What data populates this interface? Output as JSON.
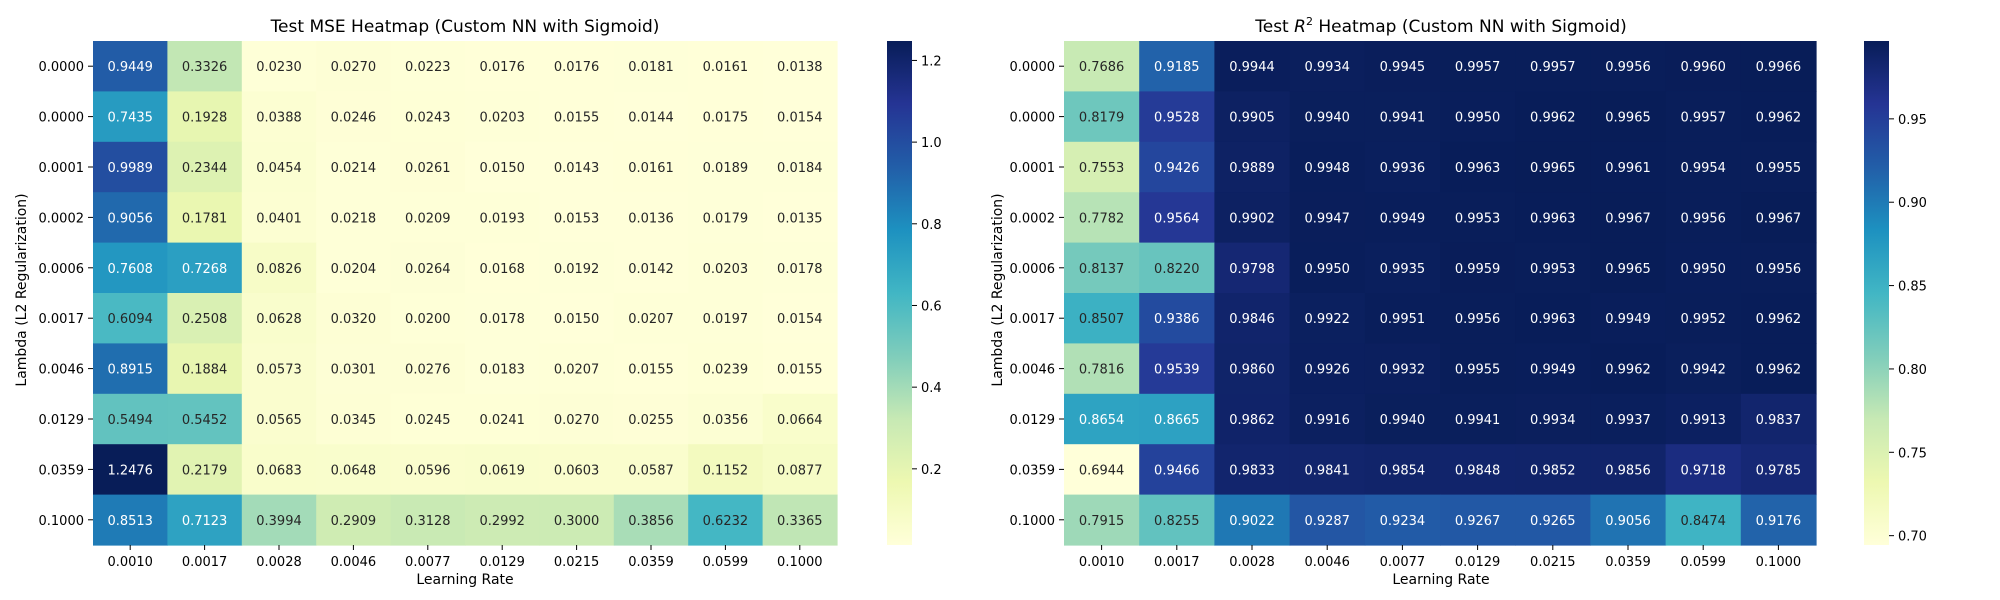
{
  "chart_data": [
    {
      "type": "heatmap",
      "title": "Test MSE Heatmap (Custom NN with Sigmoid)",
      "xlabel": "Learning Rate",
      "ylabel": "Lambda (L2 Regularization)",
      "x_categories": [
        "0.0010",
        "0.0017",
        "0.0028",
        "0.0046",
        "0.0077",
        "0.0129",
        "0.0215",
        "0.0359",
        "0.0599",
        "0.1000"
      ],
      "y_categories": [
        "0.0000",
        "0.0000",
        "0.0001",
        "0.0002",
        "0.0006",
        "0.0017",
        "0.0046",
        "0.0129",
        "0.0359",
        "0.1000"
      ],
      "values": [
        [
          0.9449,
          0.3326,
          0.023,
          0.027,
          0.0223,
          0.0176,
          0.0176,
          0.0181,
          0.0161,
          0.0138
        ],
        [
          0.7435,
          0.1928,
          0.0388,
          0.0246,
          0.0243,
          0.0203,
          0.0155,
          0.0144,
          0.0175,
          0.0154
        ],
        [
          0.9989,
          0.2344,
          0.0454,
          0.0214,
          0.0261,
          0.015,
          0.0143,
          0.0161,
          0.0189,
          0.0184
        ],
        [
          0.9056,
          0.1781,
          0.0401,
          0.0218,
          0.0209,
          0.0193,
          0.0153,
          0.0136,
          0.0179,
          0.0135
        ],
        [
          0.7608,
          0.7268,
          0.0826,
          0.0204,
          0.0264,
          0.0168,
          0.0192,
          0.0142,
          0.0203,
          0.0178
        ],
        [
          0.6094,
          0.2508,
          0.0628,
          0.032,
          0.02,
          0.0178,
          0.015,
          0.0207,
          0.0197,
          0.0154
        ],
        [
          0.8915,
          0.1884,
          0.0573,
          0.0301,
          0.0276,
          0.0183,
          0.0207,
          0.0155,
          0.0239,
          0.0155
        ],
        [
          0.5494,
          0.5452,
          0.0565,
          0.0345,
          0.0245,
          0.0241,
          0.027,
          0.0255,
          0.0356,
          0.0664
        ],
        [
          1.2476,
          0.2179,
          0.0683,
          0.0648,
          0.0596,
          0.0619,
          0.0603,
          0.0587,
          0.1152,
          0.0877
        ],
        [
          0.8513,
          0.7123,
          0.3994,
          0.2909,
          0.3128,
          0.2992,
          0.3,
          0.3856,
          0.6232,
          0.3365
        ]
      ],
      "colormap": "YlGnBu",
      "vmin": 0.0135,
      "vmax": 1.2476,
      "colorbar_ticks": [
        0.2,
        0.4,
        0.6,
        0.8,
        1.0,
        1.2
      ],
      "colorbar_tick_labels": [
        "0.2",
        "0.4",
        "0.6",
        "0.8",
        "1.0",
        "1.2"
      ]
    },
    {
      "type": "heatmap",
      "title_prefix": "Test ",
      "title_math": "R",
      "title_sup": "2",
      "title_suffix": " Heatmap (Custom NN with Sigmoid)",
      "xlabel": "Learning Rate",
      "ylabel": "Lambda (L2 Regularization)",
      "x_categories": [
        "0.0010",
        "0.0017",
        "0.0028",
        "0.0046",
        "0.0077",
        "0.0129",
        "0.0215",
        "0.0359",
        "0.0599",
        "0.1000"
      ],
      "y_categories": [
        "0.0000",
        "0.0000",
        "0.0001",
        "0.0002",
        "0.0006",
        "0.0017",
        "0.0046",
        "0.0129",
        "0.0359",
        "0.1000"
      ],
      "values": [
        [
          0.7686,
          0.9185,
          0.9944,
          0.9934,
          0.9945,
          0.9957,
          0.9957,
          0.9956,
          0.996,
          0.9966
        ],
        [
          0.8179,
          0.9528,
          0.9905,
          0.994,
          0.9941,
          0.995,
          0.9962,
          0.9965,
          0.9957,
          0.9962
        ],
        [
          0.7553,
          0.9426,
          0.9889,
          0.9948,
          0.9936,
          0.9963,
          0.9965,
          0.9961,
          0.9954,
          0.9955
        ],
        [
          0.7782,
          0.9564,
          0.9902,
          0.9947,
          0.9949,
          0.9953,
          0.9963,
          0.9967,
          0.9956,
          0.9967
        ],
        [
          0.8137,
          0.822,
          0.9798,
          0.995,
          0.9935,
          0.9959,
          0.9953,
          0.9965,
          0.995,
          0.9956
        ],
        [
          0.8507,
          0.9386,
          0.9846,
          0.9922,
          0.9951,
          0.9956,
          0.9963,
          0.9949,
          0.9952,
          0.9962
        ],
        [
          0.7816,
          0.9539,
          0.986,
          0.9926,
          0.9932,
          0.9955,
          0.9949,
          0.9962,
          0.9942,
          0.9962
        ],
        [
          0.8654,
          0.8665,
          0.9862,
          0.9916,
          0.994,
          0.9941,
          0.9934,
          0.9937,
          0.9913,
          0.9837
        ],
        [
          0.6944,
          0.9466,
          0.9833,
          0.9841,
          0.9854,
          0.9848,
          0.9852,
          0.9856,
          0.9718,
          0.9785
        ],
        [
          0.7915,
          0.8255,
          0.9022,
          0.9287,
          0.9234,
          0.9267,
          0.9265,
          0.9056,
          0.8474,
          0.9176
        ]
      ],
      "colormap": "YlGnBu",
      "vmin": 0.6944,
      "vmax": 0.9967,
      "colorbar_ticks": [
        0.7,
        0.75,
        0.8,
        0.85,
        0.9,
        0.95
      ],
      "colorbar_tick_labels": [
        "0.70",
        "0.75",
        "0.80",
        "0.85",
        "0.90",
        "0.95"
      ]
    }
  ]
}
